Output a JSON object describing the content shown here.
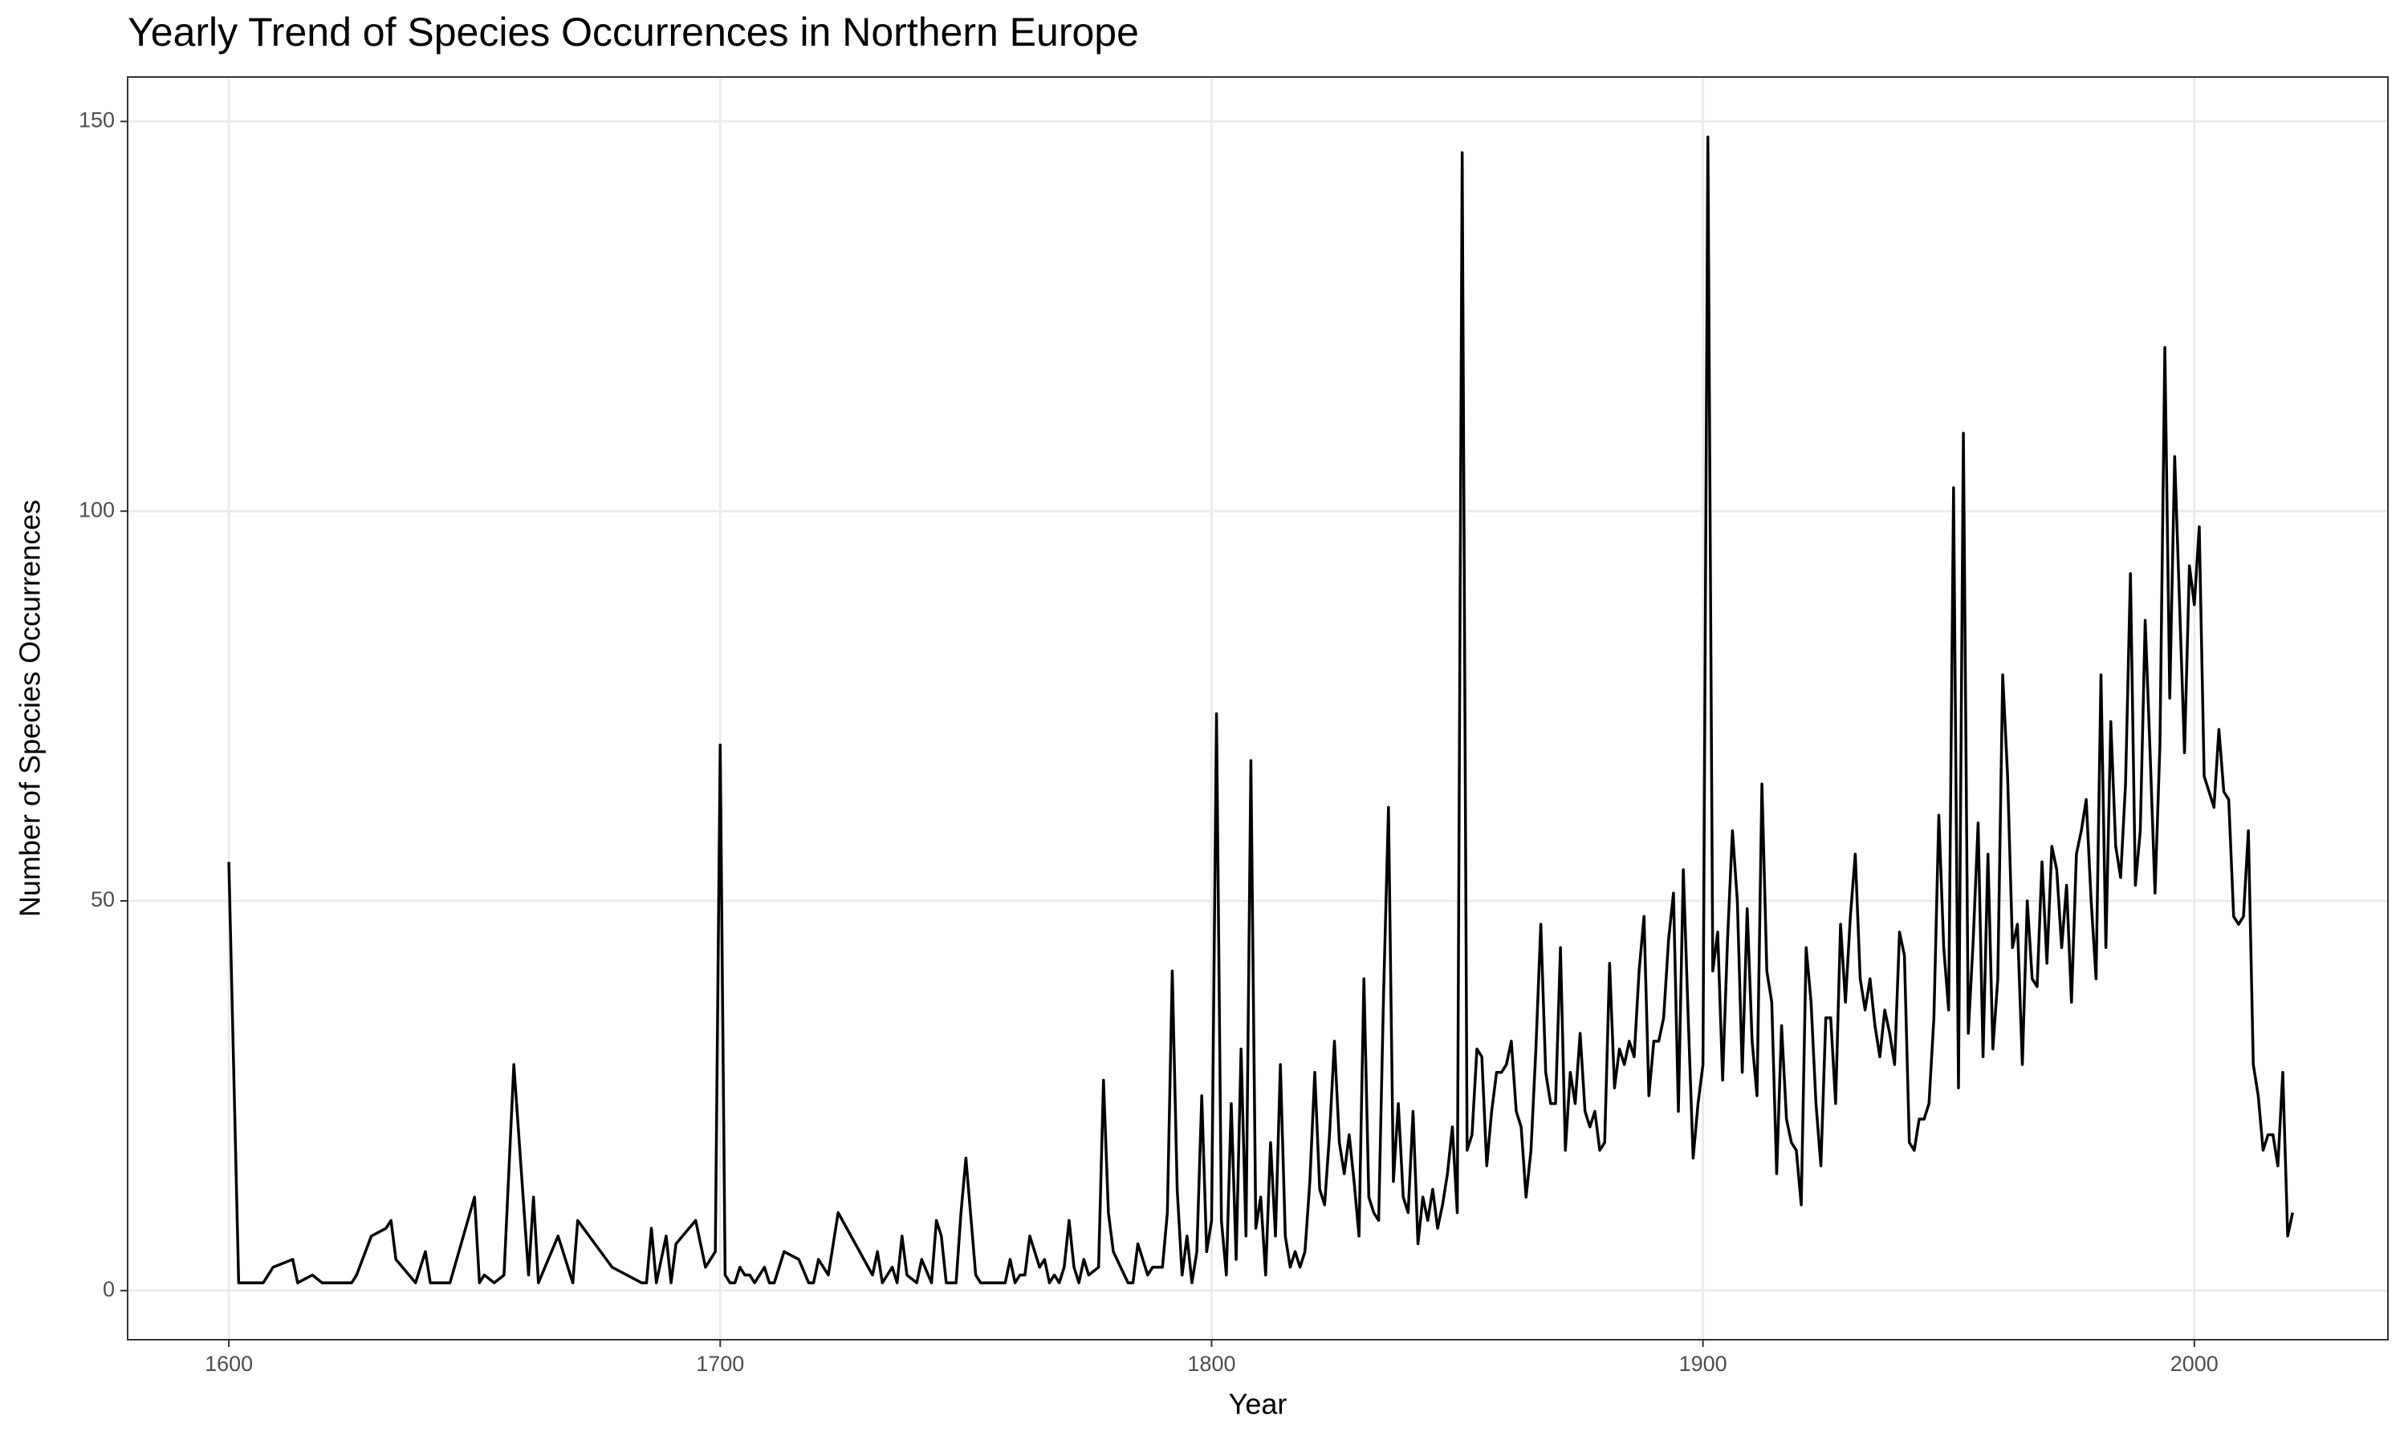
{
  "chart_data": {
    "type": "line",
    "title": "Yearly Trend of Species Occurrences in Northern Europe",
    "x_label": "Year",
    "y_label": "Number of Species Occurrences",
    "x": [
      1600,
      1602,
      1607,
      1609,
      1613,
      1614,
      1617,
      1619,
      1625,
      1626,
      1629,
      1632,
      1633,
      1634,
      1638,
      1640,
      1641,
      1645,
      1650,
      1651,
      1652,
      1654,
      1656,
      1658,
      1661,
      1662,
      1663,
      1667,
      1670,
      1671,
      1678,
      1684,
      1685,
      1686,
      1687,
      1689,
      1690,
      1691,
      1695,
      1697,
      1699,
      1700,
      1701,
      1702,
      1703,
      1704,
      1705,
      1706,
      1707,
      1709,
      1710,
      1711,
      1713,
      1716,
      1718,
      1719,
      1720,
      1722,
      1724,
      1731,
      1732,
      1733,
      1735,
      1736,
      1737,
      1738,
      1740,
      1741,
      1743,
      1744,
      1745,
      1746,
      1748,
      1749,
      1750,
      1752,
      1753,
      1758,
      1759,
      1760,
      1761,
      1762,
      1763,
      1765,
      1766,
      1767,
      1768,
      1769,
      1770,
      1771,
      1772,
      1773,
      1774,
      1775,
      1777,
      1778,
      1779,
      1780,
      1783,
      1784,
      1785,
      1787,
      1788,
      1790,
      1791,
      1792,
      1793,
      1794,
      1795,
      1796,
      1797,
      1798,
      1799,
      1800,
      1801,
      1802,
      1803,
      1804,
      1805,
      1806,
      1807,
      1808,
      1809,
      1810,
      1811,
      1812,
      1813,
      1814,
      1815,
      1816,
      1817,
      1818,
      1819,
      1820,
      1821,
      1822,
      1823,
      1824,
      1825,
      1826,
      1827,
      1828,
      1829,
      1830,
      1831,
      1832,
      1833,
      1834,
      1835,
      1836,
      1837,
      1838,
      1839,
      1840,
      1841,
      1842,
      1843,
      1844,
      1845,
      1846,
      1847,
      1848,
      1849,
      1850,
      1851,
      1852,
      1853,
      1854,
      1855,
      1856,
      1857,
      1858,
      1859,
      1860,
      1861,
      1862,
      1863,
      1864,
      1865,
      1866,
      1867,
      1868,
      1869,
      1870,
      1871,
      1872,
      1873,
      1874,
      1875,
      1876,
      1877,
      1878,
      1879,
      1880,
      1881,
      1882,
      1883,
      1884,
      1885,
      1886,
      1887,
      1888,
      1889,
      1890,
      1891,
      1892,
      1893,
      1894,
      1895,
      1896,
      1897,
      1898,
      1899,
      1900,
      1901,
      1902,
      1903,
      1904,
      1905,
      1906,
      1907,
      1908,
      1909,
      1910,
      1911,
      1912,
      1913,
      1914,
      1915,
      1916,
      1917,
      1918,
      1919,
      1920,
      1921,
      1922,
      1923,
      1924,
      1925,
      1926,
      1927,
      1928,
      1929,
      1930,
      1931,
      1932,
      1933,
      1934,
      1935,
      1936,
      1937,
      1938,
      1939,
      1940,
      1941,
      1942,
      1943,
      1944,
      1945,
      1946,
      1947,
      1948,
      1949,
      1950,
      1951,
      1952,
      1953,
      1954,
      1955,
      1956,
      1957,
      1958,
      1959,
      1960,
      1961,
      1962,
      1963,
      1964,
      1965,
      1966,
      1967,
      1968,
      1969,
      1970,
      1971,
      1972,
      1973,
      1974,
      1975,
      1976,
      1977,
      1978,
      1979,
      1980,
      1981,
      1982,
      1983,
      1984,
      1985,
      1986,
      1987,
      1988,
      1989,
      1990,
      1991,
      1992,
      1993,
      1994,
      1995,
      1996,
      1997,
      1998,
      1999,
      2000,
      2001,
      2002,
      2003,
      2004,
      2005,
      2006,
      2007,
      2008,
      2009,
      2010,
      2011,
      2012,
      2013,
      2014,
      2015,
      2016,
      2017,
      2018,
      2019,
      2020
    ],
    "values": [
      55,
      1,
      1,
      3,
      4,
      1,
      2,
      1,
      1,
      2,
      7,
      8,
      9,
      4,
      1,
      5,
      1,
      1,
      12,
      1,
      2,
      1,
      2,
      29,
      2,
      12,
      1,
      7,
      1,
      9,
      3,
      1,
      1,
      8,
      1,
      7,
      1,
      6,
      9,
      3,
      5,
      70,
      2,
      1,
      1,
      3,
      2,
      2,
      1,
      3,
      1,
      1,
      5,
      4,
      1,
      1,
      4,
      2,
      10,
      2,
      5,
      1,
      3,
      1,
      7,
      2,
      1,
      4,
      1,
      9,
      7,
      1,
      1,
      10,
      17,
      2,
      1,
      1,
      4,
      1,
      2,
      2,
      7,
      3,
      4,
      1,
      2,
      1,
      3,
      9,
      3,
      1,
      4,
      2,
      3,
      27,
      10,
      5,
      1,
      1,
      6,
      2,
      3,
      3,
      10,
      41,
      13,
      2,
      7,
      1,
      5,
      25,
      5,
      9,
      74,
      9,
      2,
      24,
      4,
      31,
      7,
      68,
      8,
      12,
      2,
      19,
      7,
      29,
      7,
      3,
      5,
      3,
      5,
      14,
      28,
      13,
      11,
      20,
      32,
      19,
      15,
      20,
      14,
      7,
      40,
      12,
      10,
      9,
      38,
      62,
      14,
      24,
      12,
      10,
      23,
      6,
      12,
      9,
      13,
      8,
      11,
      15,
      21,
      10,
      146,
      18,
      20,
      31,
      30,
      16,
      23,
      28,
      28,
      29,
      32,
      23,
      21,
      12,
      18,
      31,
      47,
      28,
      24,
      24,
      44,
      18,
      28,
      24,
      33,
      23,
      21,
      23,
      18,
      19,
      42,
      26,
      31,
      29,
      32,
      30,
      41,
      48,
      25,
      32,
      32,
      35,
      45,
      51,
      23,
      54,
      35,
      17,
      24,
      29,
      148,
      41,
      46,
      27,
      45,
      59,
      50,
      28,
      49,
      32,
      25,
      65,
      41,
      37,
      15,
      34,
      22,
      19,
      18,
      11,
      44,
      37,
      24,
      16,
      35,
      35,
      24,
      47,
      37,
      48,
      56,
      40,
      36,
      40,
      34,
      30,
      36,
      33,
      29,
      46,
      43,
      19,
      18,
      22,
      22,
      24,
      35,
      61,
      44,
      36,
      103,
      26,
      110,
      33,
      45,
      60,
      30,
      56,
      31,
      40,
      79,
      66,
      44,
      47,
      29,
      50,
      40,
      39,
      55,
      42,
      57,
      54,
      44,
      52,
      37,
      56,
      59,
      63,
      50,
      40,
      79,
      44,
      73,
      57,
      53,
      65,
      92,
      52,
      59,
      86,
      69,
      51,
      70,
      121,
      76,
      107,
      88,
      69,
      93,
      88,
      98,
      66,
      64,
      62,
      72,
      64,
      63,
      48,
      47,
      48,
      59,
      29,
      25,
      18,
      20,
      20,
      16,
      28,
      7,
      10
    ],
    "color": "#000000",
    "xlim": [
      1579.4,
      2039.4
    ],
    "ylim": [
      -6.3,
      155.7
    ],
    "xticks": [
      1600,
      1700,
      1800,
      1900,
      2000
    ],
    "yticks": [
      0,
      50,
      100,
      150
    ],
    "grid": true
  }
}
